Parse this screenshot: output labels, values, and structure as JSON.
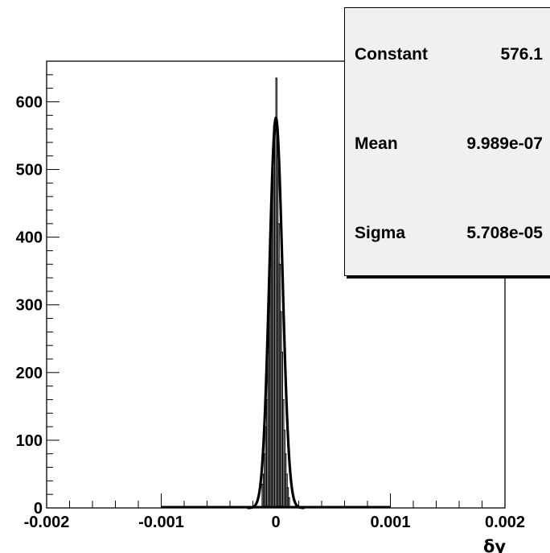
{
  "chart_data": {
    "type": "bar",
    "title": "",
    "xlabel": "δy",
    "ylabel": "",
    "xlim": [
      -0.002,
      0.002
    ],
    "ylim": [
      0,
      660
    ],
    "x_ticks": [
      -0.002,
      -0.001,
      0,
      0.001,
      0.002
    ],
    "x_tick_labels": [
      "-0.002",
      "-0.001",
      "0",
      "0.001",
      "0.002"
    ],
    "y_ticks": [
      0,
      100,
      200,
      300,
      400,
      500,
      600
    ],
    "y_tick_labels": [
      "0",
      "100",
      "200",
      "300",
      "400",
      "500",
      "600"
    ],
    "histogram": {
      "bin_width": 1e-05,
      "bin_centers": [
        -0.000115,
        -0.000105,
        -9.5e-05,
        -8.5e-05,
        -7.5e-05,
        -6.5e-05,
        -5.5e-05,
        -4.5e-05,
        -3.5e-05,
        -2.5e-05,
        -1.5e-05,
        -5e-06,
        5e-06,
        1.5e-05,
        2.5e-05,
        3.5e-05,
        4.5e-05,
        5.5e-05,
        6.5e-05,
        7.5e-05,
        8.5e-05,
        9.5e-05,
        0.000105,
        0.000115
      ],
      "values": [
        35,
        50,
        80,
        120,
        160,
        230,
        290,
        360,
        420,
        520,
        565,
        560,
        635,
        520,
        420,
        360,
        290,
        230,
        160,
        115,
        80,
        50,
        30,
        15
      ]
    },
    "fit": {
      "function": "gaus",
      "x_range": [
        -0.00025,
        0.00025
      ],
      "constant": 576.1,
      "mean": 9.989e-07,
      "sigma": 5.708e-05
    },
    "stats": [
      {
        "name": "Constant",
        "value": "576.1"
      },
      {
        "name": "Mean",
        "value": "9.989e-07"
      },
      {
        "name": "Sigma",
        "value": "5.708e-05"
      }
    ],
    "legend_position": "top-right",
    "grid": false
  }
}
